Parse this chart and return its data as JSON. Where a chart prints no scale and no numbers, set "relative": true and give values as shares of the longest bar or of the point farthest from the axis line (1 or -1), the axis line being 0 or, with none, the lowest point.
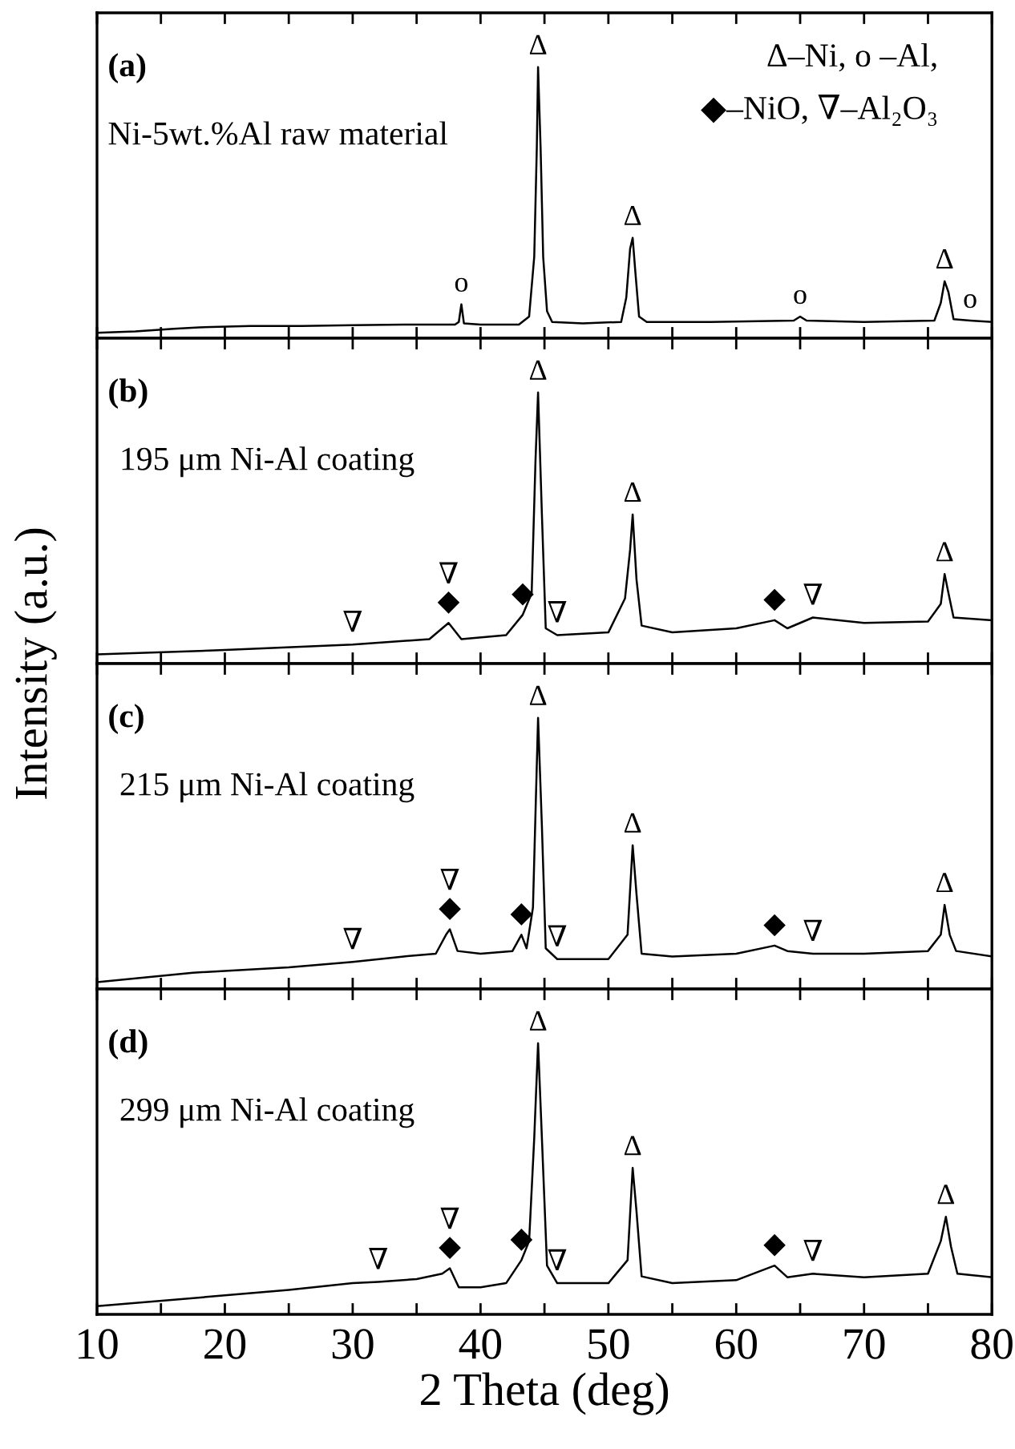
{
  "chart_data": [
    {
      "type": "line",
      "title": "(a)",
      "subtitle": "Ni-5wt.%Al raw material",
      "relative": true,
      "tick_labels": false,
      "xlim": [
        10,
        80
      ],
      "xticks": [
        10,
        {
          "value": 15,
          "label": null
        },
        20,
        {
          "value": 25,
          "label": null
        },
        30,
        {
          "value": 35,
          "label": null
        },
        40,
        {
          "value": 45,
          "label": null
        },
        50,
        {
          "value": 55,
          "label": null
        },
        60,
        {
          "value": 65,
          "label": null
        },
        70,
        {
          "value": 75,
          "label": null
        },
        80
      ],
      "series": [
        {
          "color": "#000000",
          "x": [
            10,
            13,
            16,
            18,
            22,
            26,
            30,
            34,
            38,
            38.3,
            38.5,
            38.7,
            40,
            43,
            43.8,
            44.2,
            44.4,
            44.5,
            44.7,
            44.9,
            45.2,
            45.6,
            48,
            51,
            51.4,
            51.7,
            51.9,
            52.1,
            52.4,
            53,
            58,
            64.5,
            65,
            65.5,
            70,
            75.5,
            76,
            76.3,
            76.6,
            77,
            78.3,
            80
          ],
          "values": [
            0.02,
            0.025,
            0.035,
            0.04,
            0.045,
            0.045,
            0.048,
            0.05,
            0.05,
            0.06,
            0.125,
            0.055,
            0.05,
            0.05,
            0.08,
            0.3,
            0.7,
            1,
            0.7,
            0.3,
            0.1,
            0.06,
            0.055,
            0.06,
            0.15,
            0.33,
            0.37,
            0.25,
            0.08,
            0.06,
            0.06,
            0.065,
            0.08,
            0.065,
            0.06,
            0.065,
            0.13,
            0.21,
            0.17,
            0.07,
            0.065,
            0.06
          ]
        }
      ],
      "annotations": [
        "Δ–Ni, o –Al,",
        "◆–NiO, ∇–Al₂O₃",
        {
          "text": "Δ",
          "x": 44.5,
          "y": 1
        },
        {
          "text": "Δ",
          "x": 51.9,
          "y": 0.37
        },
        {
          "text": "Δ",
          "x": 76.3,
          "y": 0.21
        },
        {
          "text": "o",
          "x": 38.5,
          "y": 0.125
        },
        {
          "text": "o",
          "x": 65,
          "y": 0.08
        },
        {
          "text": "o",
          "x": 78.3,
          "y": 0.065
        }
      ]
    },
    {
      "type": "line",
      "title": "(b)",
      "subtitle": "195 μm Ni-Al coating",
      "ylabel": "Intensity (a.u.)",
      "relative": true,
      "tick_labels": false,
      "xlim": [
        10,
        80
      ],
      "xticks": [
        10,
        {
          "value": 15,
          "label": null
        },
        20,
        {
          "value": 25,
          "label": null
        },
        30,
        {
          "value": 35,
          "label": null
        },
        40,
        {
          "value": 45,
          "label": null
        },
        50,
        {
          "value": 55,
          "label": null
        },
        60,
        {
          "value": 65,
          "label": null
        },
        70,
        {
          "value": 75,
          "label": null
        },
        80
      ],
      "series": [
        {
          "color": "#000000",
          "x": [
            10,
            20,
            30,
            36,
            37.5,
            38.5,
            42,
            43.3,
            44,
            44.3,
            44.5,
            44.8,
            45.1,
            46,
            50,
            51.3,
            51.7,
            51.9,
            52.2,
            52.6,
            55,
            60,
            63,
            64,
            66,
            70,
            75,
            76,
            76.3,
            76.6,
            77,
            80
          ],
          "values": [
            0.034,
            0.05,
            0.07,
            0.09,
            0.15,
            0.09,
            0.105,
            0.18,
            0.26,
            0.75,
            1,
            0.55,
            0.13,
            0.105,
            0.115,
            0.24,
            0.42,
            0.55,
            0.31,
            0.14,
            0.115,
            0.13,
            0.16,
            0.13,
            0.17,
            0.15,
            0.155,
            0.22,
            0.33,
            0.26,
            0.17,
            0.16
          ]
        }
      ],
      "annotations": [
        {
          "text": "∇",
          "x": 30,
          "y": 0.07
        },
        {
          "text": "◆",
          "x": 37.5,
          "y": 0.15
        },
        {
          "text": "∇",
          "x": 37.5,
          "y": 0.15
        },
        {
          "text": "◆",
          "x": 43.3,
          "y": 0.18
        },
        {
          "text": "∇",
          "x": 46,
          "y": 0.105
        },
        {
          "text": "Δ",
          "x": 44.5,
          "y": 1
        },
        {
          "text": "Δ",
          "x": 51.9,
          "y": 0.55
        },
        {
          "text": "◆",
          "x": 63,
          "y": 0.16
        },
        {
          "text": "∇",
          "x": 66,
          "y": 0.17
        },
        {
          "text": "Δ",
          "x": 76.3,
          "y": 0.33
        }
      ]
    },
    {
      "type": "line",
      "title": "(c)",
      "subtitle": "215 μm Ni-Al coating",
      "relative": true,
      "tick_labels": false,
      "xlim": [
        10,
        80
      ],
      "xticks": [
        10,
        {
          "value": 15,
          "label": null
        },
        20,
        {
          "value": 25,
          "label": null
        },
        30,
        {
          "value": 35,
          "label": null
        },
        40,
        {
          "value": 45,
          "label": null
        },
        50,
        {
          "value": 55,
          "label": null
        },
        60,
        {
          "value": 65,
          "label": null
        },
        70,
        {
          "value": 75,
          "label": null
        },
        80
      ],
      "series": [
        {
          "color": "#000000",
          "x": [
            10,
            17.5,
            25,
            30,
            34,
            36.5,
            37.3,
            37.6,
            38.2,
            40,
            42.5,
            43.2,
            43.6,
            44.1,
            44.3,
            44.5,
            44.8,
            45.1,
            46,
            50,
            51.5,
            51.9,
            52.2,
            52.6,
            55,
            60,
            63,
            64,
            66,
            70,
            75,
            76,
            76.3,
            76.7,
            77.2,
            80
          ],
          "values": [
            0.025,
            0.06,
            0.08,
            0.1,
            0.12,
            0.13,
            0.2,
            0.22,
            0.14,
            0.13,
            0.14,
            0.2,
            0.15,
            0.3,
            0.65,
            1,
            0.6,
            0.15,
            0.11,
            0.11,
            0.2,
            0.53,
            0.35,
            0.13,
            0.12,
            0.13,
            0.16,
            0.14,
            0.13,
            0.13,
            0.14,
            0.2,
            0.31,
            0.2,
            0.14,
            0.12
          ]
        }
      ],
      "annotations": [
        {
          "text": "∇",
          "x": 30,
          "y": 0.1
        },
        {
          "text": "◆",
          "x": 37.6,
          "y": 0.22
        },
        {
          "text": "∇",
          "x": 37.6,
          "y": 0.22
        },
        {
          "text": "◆",
          "x": 43.2,
          "y": 0.2
        },
        {
          "text": "∇",
          "x": 46,
          "y": 0.11
        },
        {
          "text": "Δ",
          "x": 44.5,
          "y": 1
        },
        {
          "text": "Δ",
          "x": 51.9,
          "y": 0.53
        },
        {
          "text": "◆",
          "x": 63,
          "y": 0.16
        },
        {
          "text": "∇",
          "x": 66,
          "y": 0.13
        },
        {
          "text": "Δ",
          "x": 76.3,
          "y": 0.31
        }
      ]
    },
    {
      "type": "line",
      "title": "(d)",
      "subtitle": "299 μm Ni-Al coating",
      "xlabel": "2 Theta (deg)",
      "relative": true,
      "tick_labels": "x",
      "xlim": [
        10,
        80
      ],
      "xticks": [
        10,
        {
          "value": 15,
          "label": null
        },
        20,
        {
          "value": 25,
          "label": null
        },
        30,
        {
          "value": 35,
          "label": null
        },
        40,
        {
          "value": 45,
          "label": null
        },
        50,
        {
          "value": 55,
          "label": null
        },
        60,
        {
          "value": 65,
          "label": null
        },
        70,
        {
          "value": 75,
          "label": null
        },
        80
      ],
      "series": [
        {
          "color": "#000000",
          "x": [
            10,
            20,
            25,
            30,
            32,
            35,
            37,
            37.6,
            38.3,
            40,
            42,
            43.2,
            43.8,
            44.2,
            44.5,
            44.8,
            45.2,
            46,
            50,
            51.5,
            51.9,
            52.2,
            52.6,
            55,
            60,
            63,
            64,
            66,
            70,
            75,
            76,
            76.4,
            76.8,
            77.3,
            80
          ],
          "values": [
            0.03,
            0.07,
            0.09,
            0.115,
            0.12,
            0.13,
            0.15,
            0.17,
            0.1,
            0.1,
            0.115,
            0.2,
            0.27,
            0.65,
            1,
            0.65,
            0.18,
            0.115,
            0.115,
            0.2,
            0.54,
            0.38,
            0.14,
            0.115,
            0.126,
            0.18,
            0.137,
            0.15,
            0.137,
            0.15,
            0.27,
            0.36,
            0.25,
            0.15,
            0.137
          ]
        }
      ],
      "annotations": [
        {
          "text": "∇",
          "x": 32,
          "y": 0.12
        },
        {
          "text": "◆",
          "x": 37.6,
          "y": 0.17
        },
        {
          "text": "∇",
          "x": 37.6,
          "y": 0.17
        },
        {
          "text": "◆",
          "x": 43.2,
          "y": 0.2
        },
        {
          "text": "∇",
          "x": 46,
          "y": 0.115
        },
        {
          "text": "Δ",
          "x": 44.5,
          "y": 1
        },
        {
          "text": "Δ",
          "x": 51.9,
          "y": 0.54
        },
        {
          "text": "◆",
          "x": 63,
          "y": 0.18
        },
        {
          "text": "∇",
          "x": 66,
          "y": 0.15
        },
        {
          "text": "Δ",
          "x": 76.4,
          "y": 0.36
        }
      ]
    }
  ]
}
